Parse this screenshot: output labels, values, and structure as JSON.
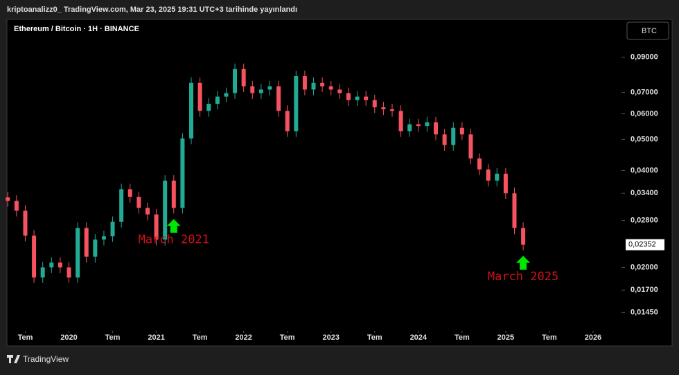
{
  "header": {
    "text": "kriptoanalizz0_ TradingView.com, Mar 23, 2025 19:31 UTC+3 tarihinde yayınlandı"
  },
  "footer": {
    "brand": "TradingView"
  },
  "chart_data": {
    "type": "candlestick",
    "title": "Ethereum / Bitcoin · 1H · BINANCE",
    "currency_button": "BTC",
    "log_scale": true,
    "grid": false,
    "up_color": "#22ab94",
    "down_color": "#f7525f",
    "annotation_color": "#d0101a",
    "arrow_color": "#00e600",
    "annotations": [
      {
        "text": "March 2021",
        "x": 2021.2
      },
      {
        "text": "March 2025",
        "x": 2025.2
      }
    ],
    "price_label": {
      "value": 0.02352,
      "label": "0,02352"
    },
    "xlim": [
      2019.29,
      2026.27
    ],
    "xticks": [
      {
        "value": 2019.5,
        "label": "Tem"
      },
      2020,
      {
        "value": 2020.5,
        "label": "Tem"
      },
      2021,
      {
        "value": 2021.5,
        "label": "Tem"
      },
      2022,
      {
        "value": 2022.5,
        "label": "Tem"
      },
      2023,
      {
        "value": 2023.5,
        "label": "Tem"
      },
      2024,
      {
        "value": 2024.5,
        "label": "Tem"
      },
      2025,
      {
        "value": 2025.5,
        "label": "Tem"
      },
      2026
    ],
    "ylim": [
      0.0129,
      0.118
    ],
    "yticks": [
      {
        "value": 0.09,
        "label": "0,09000"
      },
      {
        "value": 0.07,
        "label": "0,07000"
      },
      {
        "value": 0.06,
        "label": "0,06000"
      },
      {
        "value": 0.05,
        "label": "0,05000"
      },
      {
        "value": 0.04,
        "label": "0,04000"
      },
      {
        "value": 0.034,
        "label": "0,03400"
      },
      {
        "value": 0.028,
        "label": "0,02800"
      },
      {
        "value": 0.02,
        "label": "0,02000"
      },
      {
        "value": 0.017,
        "label": "0,01700"
      },
      {
        "value": 0.0145,
        "label": "0,01450"
      }
    ],
    "x": [
      2019.3,
      2019.4,
      2019.5,
      2019.6,
      2019.7,
      2019.8,
      2019.9,
      2020.0,
      2020.1,
      2020.2,
      2020.3,
      2020.4,
      2020.5,
      2020.6,
      2020.7,
      2020.8,
      2020.9,
      2021.0,
      2021.1,
      2021.2,
      2021.3,
      2021.4,
      2021.5,
      2021.6,
      2021.7,
      2021.8,
      2021.9,
      2022.0,
      2022.1,
      2022.2,
      2022.3,
      2022.4,
      2022.5,
      2022.6,
      2022.7,
      2022.8,
      2022.9,
      2023.0,
      2023.1,
      2023.2,
      2023.3,
      2023.4,
      2023.5,
      2023.6,
      2023.7,
      2023.8,
      2023.9,
      2024.0,
      2024.1,
      2024.2,
      2024.3,
      2024.4,
      2024.5,
      2024.6,
      2024.7,
      2024.8,
      2024.9,
      2025.0,
      2025.1,
      2025.2
    ],
    "open": [
      0.033,
      0.0322,
      0.03,
      0.0251,
      0.0186,
      0.02,
      0.0207,
      0.02,
      0.0186,
      0.0265,
      0.0216,
      0.0244,
      0.025,
      0.0277,
      0.035,
      0.0331,
      0.0306,
      0.0292,
      0.0244,
      0.0372,
      0.0306,
      0.0503,
      0.0749,
      0.0613,
      0.0645,
      0.0679,
      0.0696,
      0.0827,
      0.0731,
      0.0696,
      0.0714,
      0.0731,
      0.0613,
      0.053,
      0.0786,
      0.0714,
      0.0749,
      0.0731,
      0.0714,
      0.0696,
      0.0662,
      0.0679,
      0.0662,
      0.0629,
      0.062,
      0.0613,
      0.053,
      0.0557,
      0.055,
      0.0565,
      0.0518,
      0.048,
      0.0543,
      0.0518,
      0.0436,
      0.0403,
      0.0372,
      0.0391,
      0.034,
      0.0265
    ],
    "high": [
      0.0343,
      0.0335,
      0.0312,
      0.0261,
      0.0208,
      0.0215,
      0.0215,
      0.0208,
      0.0276,
      0.0276,
      0.0254,
      0.026,
      0.0288,
      0.0364,
      0.0364,
      0.0344,
      0.0318,
      0.0304,
      0.0387,
      0.0387,
      0.0523,
      0.0779,
      0.0779,
      0.0671,
      0.0706,
      0.0724,
      0.086,
      0.086,
      0.076,
      0.0743,
      0.076,
      0.076,
      0.0638,
      0.0817,
      0.0817,
      0.0779,
      0.0779,
      0.076,
      0.0743,
      0.0724,
      0.0706,
      0.0706,
      0.0688,
      0.0654,
      0.0645,
      0.0638,
      0.0579,
      0.0579,
      0.0588,
      0.0588,
      0.0539,
      0.0565,
      0.0565,
      0.0539,
      0.0453,
      0.0419,
      0.0407,
      0.0407,
      0.0354,
      0.0276
    ],
    "low": [
      0.0309,
      0.0288,
      0.0241,
      0.0179,
      0.0179,
      0.0192,
      0.0192,
      0.0179,
      0.0179,
      0.0207,
      0.0207,
      0.0234,
      0.024,
      0.0266,
      0.0318,
      0.0294,
      0.028,
      0.0234,
      0.0234,
      0.0294,
      0.0294,
      0.0483,
      0.0588,
      0.0588,
      0.0619,
      0.0652,
      0.0668,
      0.0702,
      0.0668,
      0.0668,
      0.0685,
      0.0588,
      0.0509,
      0.0509,
      0.0685,
      0.0685,
      0.0702,
      0.0685,
      0.0668,
      0.0636,
      0.0636,
      0.0636,
      0.0604,
      0.0595,
      0.0588,
      0.0509,
      0.0509,
      0.0528,
      0.0528,
      0.0497,
      0.0461,
      0.0461,
      0.0497,
      0.0419,
      0.0387,
      0.0357,
      0.0357,
      0.0326,
      0.0254,
      0.0226
    ],
    "close": [
      0.0322,
      0.03,
      0.0251,
      0.0186,
      0.02,
      0.0207,
      0.02,
      0.0186,
      0.0265,
      0.0216,
      0.0244,
      0.025,
      0.0277,
      0.035,
      0.0331,
      0.0306,
      0.0292,
      0.0244,
      0.0372,
      0.0306,
      0.0503,
      0.0749,
      0.0613,
      0.0645,
      0.0679,
      0.0696,
      0.0827,
      0.0731,
      0.0696,
      0.0714,
      0.0731,
      0.0613,
      0.053,
      0.0786,
      0.0714,
      0.0749,
      0.0731,
      0.0714,
      0.0696,
      0.0662,
      0.0679,
      0.0662,
      0.0629,
      0.062,
      0.0613,
      0.053,
      0.0557,
      0.055,
      0.0565,
      0.0518,
      0.048,
      0.0543,
      0.0518,
      0.0436,
      0.0403,
      0.0372,
      0.0391,
      0.034,
      0.0265,
      0.02352
    ]
  }
}
